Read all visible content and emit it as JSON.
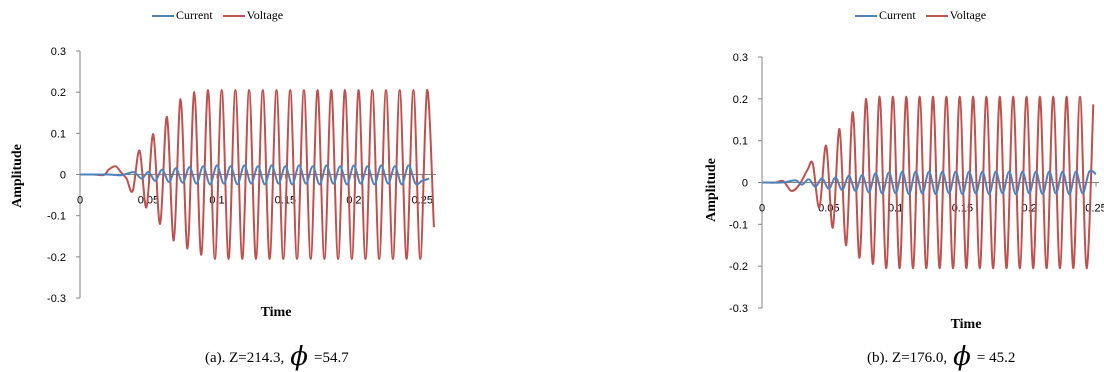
{
  "charts": [
    {
      "caption_prefix": "(a). Z=214.3,",
      "phi_symbol": "ϕ",
      "caption_suffix": "=54.7",
      "legend": [
        "Current",
        "Voltage"
      ]
    },
    {
      "caption_prefix": "(b). Z=176.0,",
      "phi_symbol": "ϕ",
      "caption_suffix": "= 45.2",
      "legend": [
        "Current",
        "Voltage"
      ]
    }
  ],
  "colors": {
    "current": "#4f81bd",
    "voltage": "#c0504d",
    "axis": "#868686"
  },
  "chart_data": [
    {
      "type": "line",
      "xlabel": "Time",
      "ylabel": "Amplitude",
      "xlim": [
        0,
        0.26
      ],
      "ylim": [
        -0.3,
        0.3
      ],
      "xticks": [
        0,
        0.05,
        0.1,
        0.15,
        0.2,
        0.25
      ],
      "xtick_labels": [
        "0",
        "0.05",
        "0.1",
        "0.15",
        "0.2",
        "0.25"
      ],
      "yticks": [
        0.3,
        0.2,
        0.1,
        0,
        -0.1,
        -0.2,
        -0.3
      ],
      "ytick_labels": [
        "0.3",
        "0.2",
        "0.1",
        "0",
        "-0.1",
        "-0.2",
        "-0.3"
      ],
      "grid": false,
      "legend_position": "top",
      "series": [
        {
          "name": "Voltage",
          "color": "#c0504d",
          "x": [
            0,
            0.01,
            0.0175,
            0.021,
            0.026,
            0.03,
            0.034,
            0.0385,
            0.0435,
            0.0485,
            0.0535,
            0.0585,
            0.0635,
            0.0685,
            0.0735,
            0.0785,
            0.0835,
            0.0885,
            0.0935,
            0.0985,
            0.1035,
            0.1085,
            0.1135,
            0.1185,
            0.1235,
            0.1285,
            0.1335,
            0.1385,
            0.1435,
            0.1485,
            0.1535,
            0.1585,
            0.1635,
            0.1685,
            0.1735,
            0.1785,
            0.1835,
            0.1885,
            0.1935,
            0.1985,
            0.2035,
            0.2085,
            0.2135,
            0.2185,
            0.2235,
            0.2285,
            0.2335,
            0.2385,
            0.2435,
            0.2485,
            0.2535,
            0.2585
          ],
          "y": [
            0,
            0,
            -0.001,
            0.012,
            0.02,
            0.005,
            -0.01,
            -0.04,
            0.058,
            -0.08,
            0.098,
            -0.12,
            0.14,
            -0.16,
            0.183,
            -0.18,
            0.2,
            -0.195,
            0.205,
            -0.205,
            0.205,
            -0.205,
            0.205,
            -0.205,
            0.205,
            -0.205,
            0.205,
            -0.205,
            0.205,
            -0.205,
            0.205,
            -0.205,
            0.205,
            -0.205,
            0.205,
            -0.205,
            0.205,
            -0.205,
            0.205,
            -0.205,
            0.205,
            -0.205,
            0.205,
            -0.205,
            0.205,
            -0.205,
            0.205,
            -0.205,
            0.205,
            -0.205,
            0.205,
            -0.128
          ]
        },
        {
          "name": "Current",
          "color": "#4f81bd",
          "x": [
            0,
            0.02,
            0.03,
            0.035,
            0.04,
            0.045,
            0.05,
            0.055,
            0.06,
            0.065,
            0.07,
            0.075,
            0.08,
            0.085,
            0.09,
            0.095,
            0.1,
            0.105,
            0.11,
            0.115,
            0.12,
            0.125,
            0.13,
            0.135,
            0.14,
            0.145,
            0.15,
            0.155,
            0.16,
            0.165,
            0.17,
            0.175,
            0.18,
            0.185,
            0.19,
            0.195,
            0.2,
            0.205,
            0.21,
            0.215,
            0.22,
            0.225,
            0.23,
            0.235,
            0.24,
            0.245,
            0.25,
            0.255
          ],
          "y": [
            0,
            0,
            -0.002,
            0.003,
            0.005,
            -0.01,
            0.006,
            -0.015,
            0.012,
            -0.018,
            0.015,
            -0.02,
            0.018,
            -0.022,
            0.02,
            -0.024,
            0.022,
            -0.022,
            0.02,
            -0.024,
            0.022,
            -0.022,
            0.02,
            -0.024,
            0.022,
            -0.022,
            0.02,
            -0.024,
            0.022,
            -0.022,
            0.02,
            -0.024,
            0.022,
            -0.022,
            0.02,
            -0.024,
            0.022,
            -0.022,
            0.02,
            -0.024,
            0.022,
            -0.022,
            0.02,
            -0.024,
            0.022,
            -0.022,
            -0.015,
            -0.01
          ]
        }
      ]
    },
    {
      "type": "line",
      "xlabel": "Time",
      "ylabel": "Amplitude",
      "xlim": [
        0,
        0.25
      ],
      "ylim": [
        -0.3,
        0.3
      ],
      "xticks": [
        0,
        0.05,
        0.1,
        0.15,
        0.2,
        0.25
      ],
      "xtick_labels": [
        "0",
        "0.05",
        "0.1",
        "0.15",
        "0.2",
        "0.25"
      ],
      "yticks": [
        0.3,
        0.2,
        0.1,
        0,
        -0.1,
        -0.2,
        -0.3
      ],
      "ytick_labels": [
        "0.3",
        "0.2",
        "0.1",
        "0",
        "-0.1",
        "-0.2",
        "-0.3"
      ],
      "grid": false,
      "legend_position": "top",
      "series": [
        {
          "name": "Voltage",
          "color": "#c0504d",
          "x": [
            0,
            0.01,
            0.016,
            0.022,
            0.028,
            0.034,
            0.038,
            0.043,
            0.048,
            0.053,
            0.058,
            0.063,
            0.068,
            0.073,
            0.078,
            0.083,
            0.088,
            0.093,
            0.098,
            0.103,
            0.108,
            0.113,
            0.118,
            0.123,
            0.128,
            0.133,
            0.138,
            0.143,
            0.148,
            0.153,
            0.158,
            0.163,
            0.168,
            0.173,
            0.178,
            0.183,
            0.188,
            0.193,
            0.198,
            0.203,
            0.208,
            0.213,
            0.218,
            0.223,
            0.228,
            0.233,
            0.238,
            0.243,
            0.248
          ],
          "y": [
            0,
            0,
            0.003,
            -0.02,
            -0.005,
            0.03,
            0.045,
            -0.06,
            0.088,
            -0.108,
            0.128,
            -0.15,
            0.168,
            -0.18,
            0.2,
            -0.195,
            0.205,
            -0.205,
            0.205,
            -0.205,
            0.205,
            -0.205,
            0.205,
            -0.205,
            0.205,
            -0.205,
            0.205,
            -0.205,
            0.205,
            -0.205,
            0.205,
            -0.205,
            0.205,
            -0.205,
            0.205,
            -0.205,
            0.205,
            -0.205,
            0.205,
            -0.205,
            0.205,
            -0.205,
            0.205,
            -0.205,
            0.205,
            -0.205,
            0.205,
            -0.205,
            0.187
          ]
        },
        {
          "name": "Current",
          "color": "#4f81bd",
          "x": [
            0,
            0.015,
            0.025,
            0.03,
            0.035,
            0.04,
            0.045,
            0.05,
            0.055,
            0.06,
            0.065,
            0.07,
            0.075,
            0.08,
            0.085,
            0.09,
            0.095,
            0.1,
            0.105,
            0.11,
            0.115,
            0.12,
            0.125,
            0.13,
            0.135,
            0.14,
            0.145,
            0.15,
            0.155,
            0.16,
            0.165,
            0.17,
            0.175,
            0.18,
            0.185,
            0.19,
            0.195,
            0.2,
            0.205,
            0.21,
            0.215,
            0.22,
            0.225,
            0.23,
            0.235,
            0.24,
            0.245,
            0.25
          ],
          "y": [
            0,
            0,
            0.005,
            -0.005,
            0.008,
            -0.01,
            0.01,
            -0.015,
            0.012,
            -0.018,
            0.016,
            -0.02,
            0.018,
            -0.024,
            0.022,
            -0.026,
            0.024,
            -0.026,
            0.026,
            -0.028,
            0.026,
            -0.026,
            0.026,
            -0.028,
            0.026,
            -0.026,
            0.026,
            -0.028,
            0.026,
            -0.026,
            0.026,
            -0.028,
            0.026,
            -0.026,
            0.026,
            -0.028,
            0.026,
            -0.026,
            0.026,
            -0.028,
            0.026,
            -0.026,
            0.026,
            -0.028,
            0.026,
            -0.026,
            0.026,
            0.02
          ]
        }
      ]
    }
  ]
}
